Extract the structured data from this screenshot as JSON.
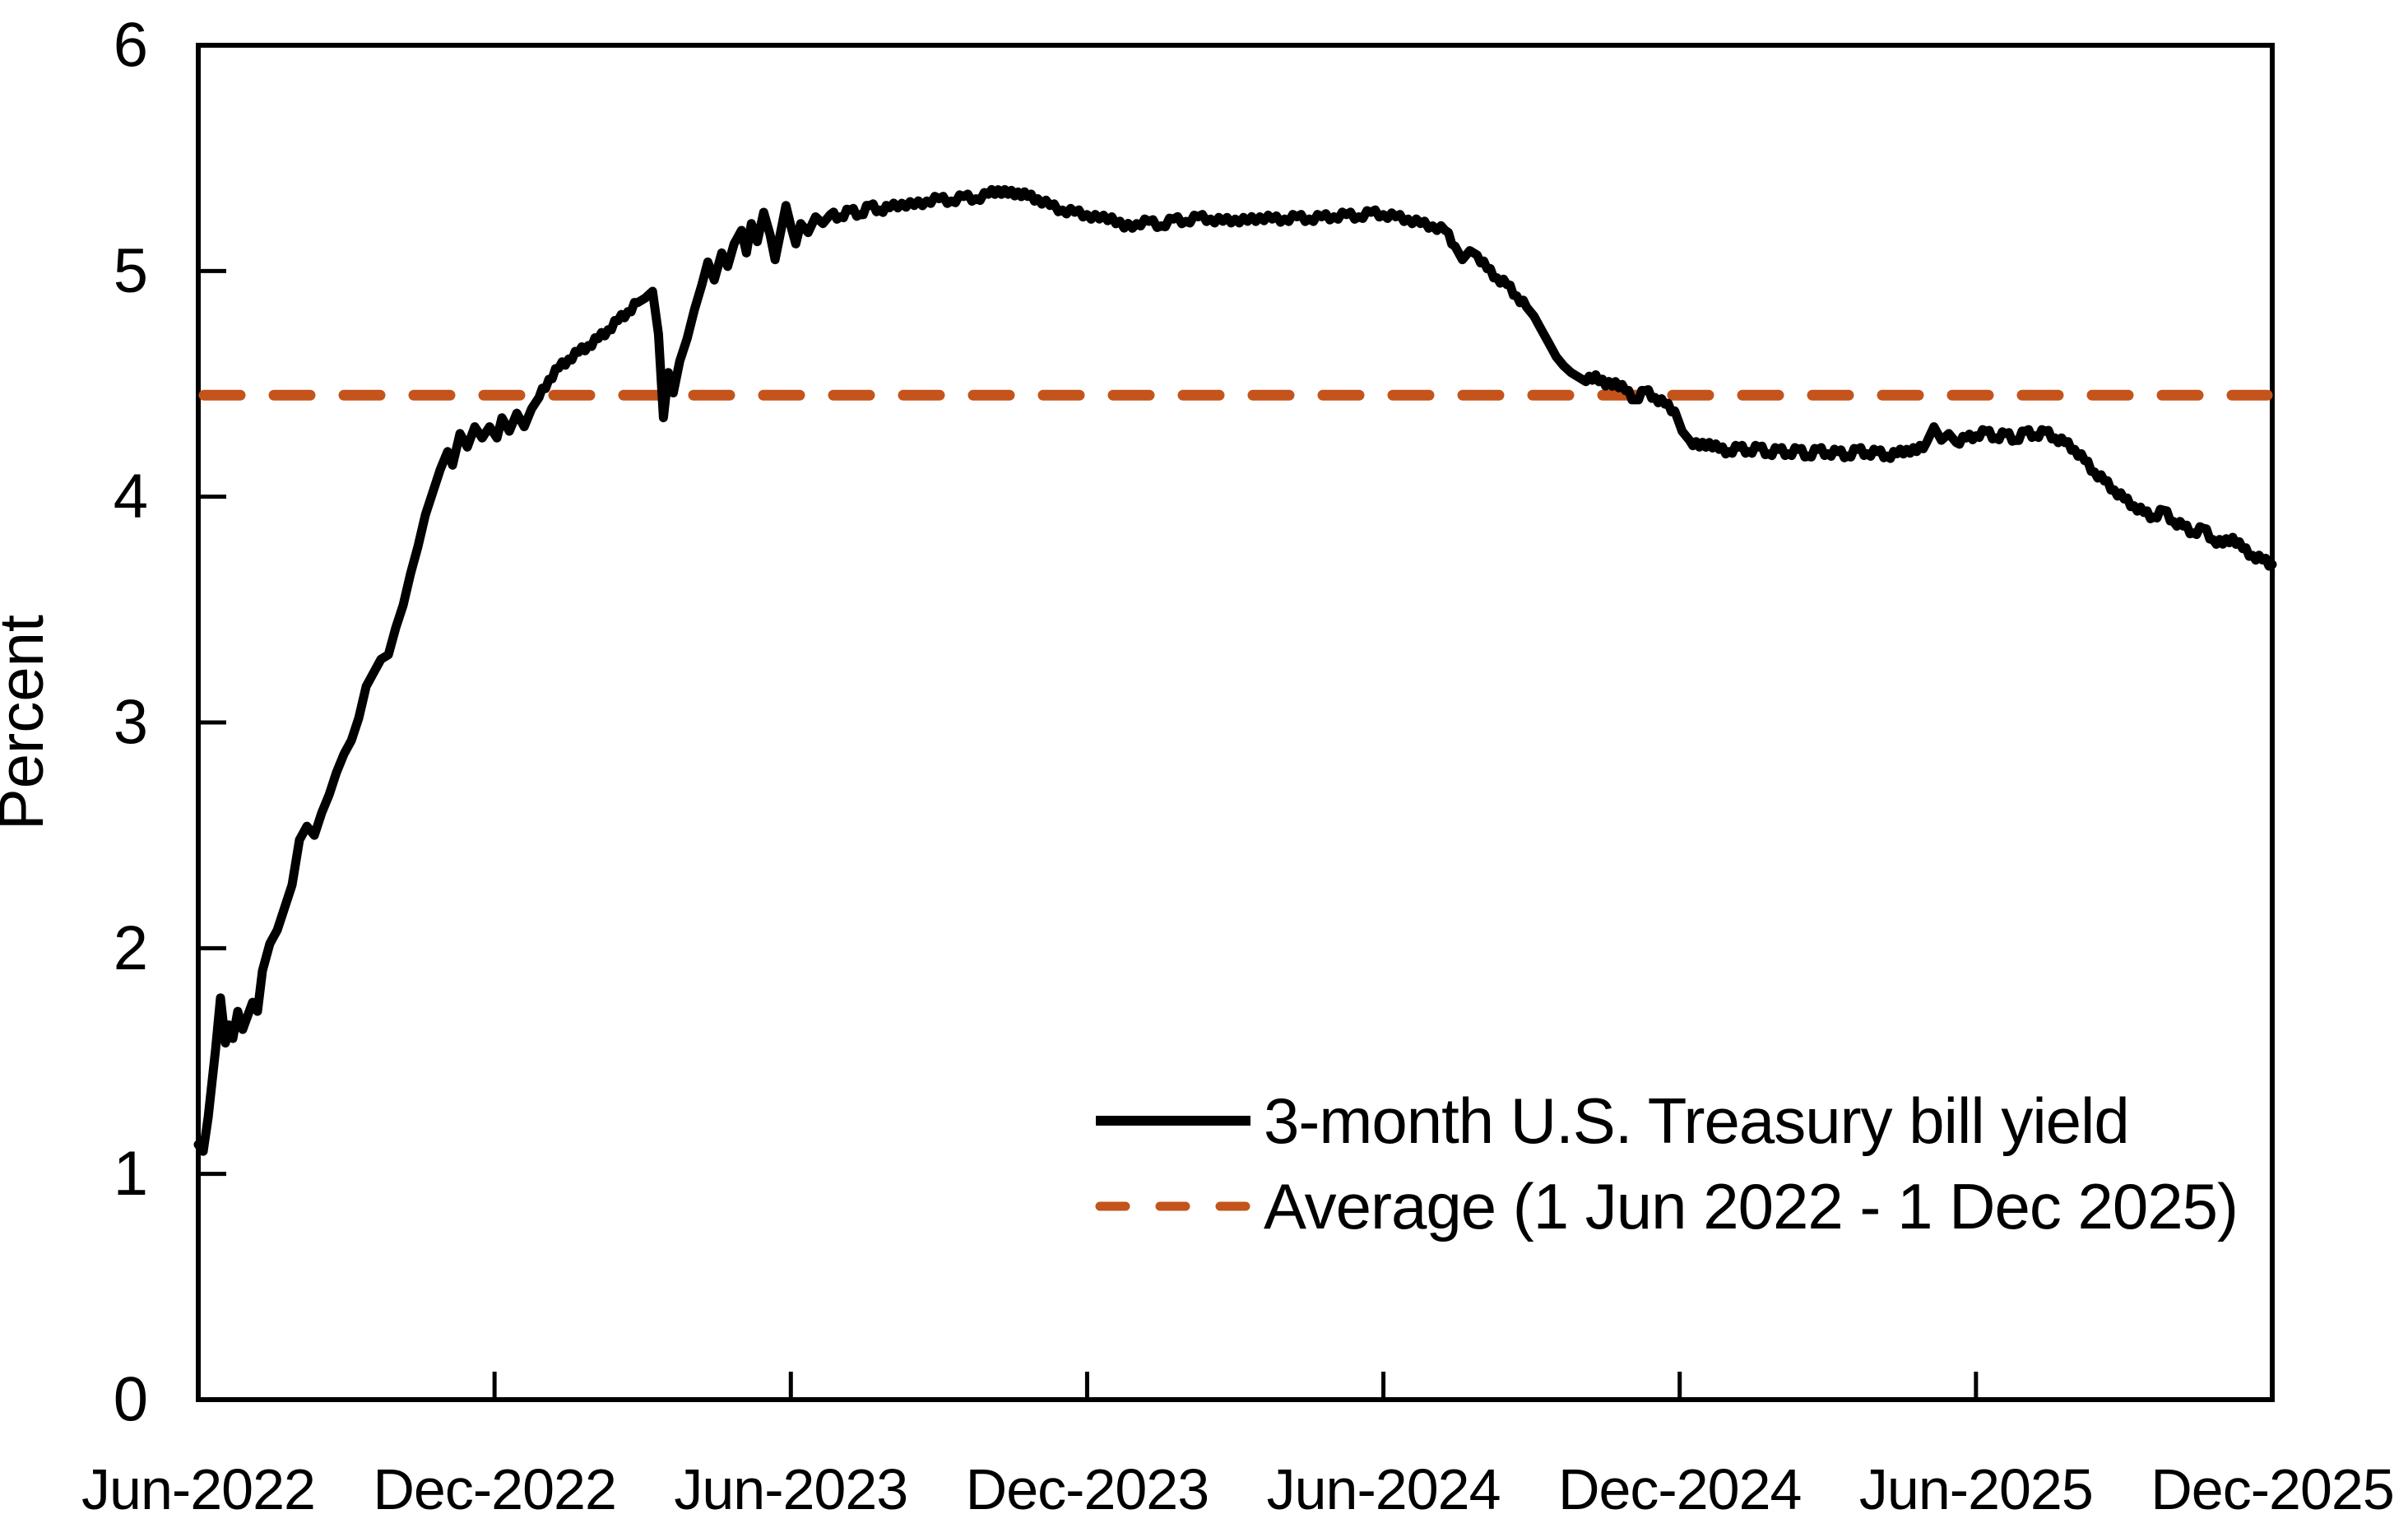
{
  "figure": {
    "background": "#FFFFFF",
    "plot_border_color": "#000000",
    "y_axis_title": "Percent"
  },
  "legend": {
    "position": "inside lower right",
    "items": [
      {
        "label": "3-month U.S. Treasury bill yield",
        "color": "#000000",
        "style": "solid"
      },
      {
        "label": "Average (1 Jun 2022 - 1 Dec 2025)",
        "color": "#C4541B",
        "style": "dashed"
      }
    ]
  },
  "chart_data": {
    "type": "line",
    "title": "",
    "xlabel": "",
    "ylabel": "Percent",
    "grid": false,
    "legend_position": "inside lower right",
    "x_tick_labels": [
      "Jun-2022",
      "Dec-2022",
      "Jun-2023",
      "Dec-2023",
      "Jun-2024",
      "Dec-2024",
      "Jun-2025",
      "Dec-2025"
    ],
    "x_tick_positions_months_since_start": [
      0,
      6,
      12,
      18,
      24,
      30,
      36,
      42
    ],
    "xlim_months": [
      0,
      42
    ],
    "y_ticks": [
      0,
      1,
      2,
      3,
      4,
      5,
      6
    ],
    "ylim": [
      0,
      6
    ],
    "series": [
      {
        "name": "3-month U.S. Treasury bill yield",
        "type": "line",
        "style": "solid",
        "color": "#000000",
        "points_format": "[months since 1 Jun 2022, yield percent]",
        "points": [
          [
            0,
            1.13
          ],
          [
            0.1,
            1.1
          ],
          [
            0.2,
            1.25
          ],
          [
            0.35,
            1.55
          ],
          [
            0.45,
            1.78
          ],
          [
            0.55,
            1.58
          ],
          [
            0.62,
            1.66
          ],
          [
            0.7,
            1.6
          ],
          [
            0.8,
            1.72
          ],
          [
            0.9,
            1.64
          ],
          [
            1.0,
            1.7
          ],
          [
            1.1,
            1.76
          ],
          [
            1.2,
            1.72
          ],
          [
            1.3,
            1.9
          ],
          [
            1.45,
            2.02
          ],
          [
            1.6,
            2.08
          ],
          [
            1.75,
            2.18
          ],
          [
            1.9,
            2.28
          ],
          [
            2.05,
            2.48
          ],
          [
            2.2,
            2.54
          ],
          [
            2.35,
            2.5
          ],
          [
            2.5,
            2.6
          ],
          [
            2.65,
            2.68
          ],
          [
            2.8,
            2.78
          ],
          [
            2.95,
            2.86
          ],
          [
            3.1,
            2.92
          ],
          [
            3.25,
            3.02
          ],
          [
            3.4,
            3.16
          ],
          [
            3.55,
            3.22
          ],
          [
            3.7,
            3.28
          ],
          [
            3.85,
            3.3
          ],
          [
            4.0,
            3.42
          ],
          [
            4.15,
            3.52
          ],
          [
            4.3,
            3.66
          ],
          [
            4.45,
            3.78
          ],
          [
            4.6,
            3.92
          ],
          [
            4.75,
            4.02
          ],
          [
            4.9,
            4.12
          ],
          [
            5.05,
            4.2
          ],
          [
            5.15,
            4.14
          ],
          [
            5.3,
            4.28
          ],
          [
            5.45,
            4.22
          ],
          [
            5.6,
            4.31
          ],
          [
            5.75,
            4.26
          ],
          [
            5.9,
            4.31
          ],
          [
            6.05,
            4.26
          ],
          [
            6.15,
            4.35
          ],
          [
            6.3,
            4.29
          ],
          [
            6.45,
            4.37
          ],
          [
            6.6,
            4.31
          ],
          [
            6.75,
            4.39
          ],
          [
            6.9,
            4.44
          ],
          [
            7.1,
            4.52
          ],
          [
            7.3,
            4.57
          ],
          [
            7.5,
            4.61
          ],
          [
            7.7,
            4.64
          ],
          [
            7.9,
            4.67
          ],
          [
            8.1,
            4.7
          ],
          [
            8.3,
            4.74
          ],
          [
            8.5,
            4.78
          ],
          [
            8.7,
            4.82
          ],
          [
            8.9,
            4.86
          ],
          [
            9.05,
            4.88
          ],
          [
            9.2,
            4.91
          ],
          [
            9.32,
            4.72
          ],
          [
            9.42,
            4.35
          ],
          [
            9.52,
            4.55
          ],
          [
            9.62,
            4.46
          ],
          [
            9.75,
            4.6
          ],
          [
            9.9,
            4.7
          ],
          [
            10.05,
            4.83
          ],
          [
            10.2,
            4.94
          ],
          [
            10.32,
            5.04
          ],
          [
            10.45,
            4.96
          ],
          [
            10.6,
            5.08
          ],
          [
            10.72,
            5.02
          ],
          [
            10.85,
            5.12
          ],
          [
            11.0,
            5.18
          ],
          [
            11.1,
            5.08
          ],
          [
            11.2,
            5.21
          ],
          [
            11.32,
            5.13
          ],
          [
            11.45,
            5.26
          ],
          [
            11.58,
            5.16
          ],
          [
            11.68,
            5.05
          ],
          [
            11.8,
            5.18
          ],
          [
            11.9,
            5.29
          ],
          [
            12.0,
            5.2
          ],
          [
            12.1,
            5.12
          ],
          [
            12.2,
            5.21
          ],
          [
            12.35,
            5.17
          ],
          [
            12.5,
            5.24
          ],
          [
            12.65,
            5.21
          ],
          [
            12.8,
            5.25
          ],
          [
            13.0,
            5.24
          ],
          [
            13.2,
            5.27
          ],
          [
            13.4,
            5.25
          ],
          [
            13.6,
            5.29
          ],
          [
            13.8,
            5.27
          ],
          [
            14.0,
            5.28
          ],
          [
            14.25,
            5.3
          ],
          [
            14.5,
            5.29
          ],
          [
            14.75,
            5.31
          ],
          [
            15.0,
            5.32
          ],
          [
            15.25,
            5.31
          ],
          [
            15.5,
            5.33
          ],
          [
            15.75,
            5.32
          ],
          [
            16.0,
            5.34
          ],
          [
            16.2,
            5.36
          ],
          [
            16.4,
            5.34
          ],
          [
            16.6,
            5.35
          ],
          [
            16.8,
            5.33
          ],
          [
            17.0,
            5.32
          ],
          [
            17.25,
            5.29
          ],
          [
            17.5,
            5.27
          ],
          [
            17.75,
            5.26
          ],
          [
            18.0,
            5.25
          ],
          [
            18.25,
            5.23
          ],
          [
            18.5,
            5.24
          ],
          [
            18.75,
            5.19
          ],
          [
            19.0,
            5.21
          ],
          [
            19.25,
            5.22
          ],
          [
            19.5,
            5.2
          ],
          [
            19.75,
            5.23
          ],
          [
            20.0,
            5.22
          ],
          [
            20.25,
            5.24
          ],
          [
            20.5,
            5.23
          ],
          [
            20.75,
            5.22
          ],
          [
            21.0,
            5.23
          ],
          [
            21.25,
            5.22
          ],
          [
            21.5,
            5.24
          ],
          [
            21.75,
            5.23
          ],
          [
            22.0,
            5.23
          ],
          [
            22.25,
            5.24
          ],
          [
            22.5,
            5.23
          ],
          [
            22.75,
            5.24
          ],
          [
            23.0,
            5.24
          ],
          [
            23.25,
            5.25
          ],
          [
            23.5,
            5.24
          ],
          [
            23.75,
            5.26
          ],
          [
            24.0,
            5.25
          ],
          [
            24.25,
            5.24
          ],
          [
            24.5,
            5.23
          ],
          [
            24.75,
            5.21
          ],
          [
            25.0,
            5.2
          ],
          [
            25.25,
            5.18
          ],
          [
            25.45,
            5.11
          ],
          [
            25.6,
            5.05
          ],
          [
            25.75,
            5.09
          ],
          [
            25.9,
            5.07
          ],
          [
            26.1,
            5.01
          ],
          [
            26.3,
            4.97
          ],
          [
            26.5,
            4.94
          ],
          [
            26.7,
            4.89
          ],
          [
            26.9,
            4.84
          ],
          [
            27.05,
            4.8
          ],
          [
            27.2,
            4.74
          ],
          [
            27.35,
            4.68
          ],
          [
            27.5,
            4.62
          ],
          [
            27.65,
            4.58
          ],
          [
            27.8,
            4.55
          ],
          [
            27.95,
            4.53
          ],
          [
            28.1,
            4.51
          ],
          [
            28.3,
            4.54
          ],
          [
            28.5,
            4.49
          ],
          [
            28.7,
            4.51
          ],
          [
            28.9,
            4.47
          ],
          [
            29.1,
            4.43
          ],
          [
            29.3,
            4.47
          ],
          [
            29.5,
            4.44
          ],
          [
            29.7,
            4.41
          ],
          [
            29.9,
            4.38
          ],
          [
            30.05,
            4.29
          ],
          [
            30.2,
            4.25
          ],
          [
            30.4,
            4.22
          ],
          [
            30.6,
            4.24
          ],
          [
            30.8,
            4.21
          ],
          [
            31.0,
            4.2
          ],
          [
            31.2,
            4.22
          ],
          [
            31.4,
            4.2
          ],
          [
            31.6,
            4.22
          ],
          [
            31.8,
            4.19
          ],
          [
            32.0,
            4.21
          ],
          [
            32.2,
            4.19
          ],
          [
            32.4,
            4.21
          ],
          [
            32.6,
            4.18
          ],
          [
            32.8,
            4.21
          ],
          [
            33.0,
            4.19
          ],
          [
            33.2,
            4.2
          ],
          [
            33.4,
            4.18
          ],
          [
            33.6,
            4.21
          ],
          [
            33.8,
            4.19
          ],
          [
            34.0,
            4.2
          ],
          [
            34.2,
            4.18
          ],
          [
            34.4,
            4.19
          ],
          [
            34.6,
            4.21
          ],
          [
            34.8,
            4.2
          ],
          [
            35.0,
            4.24
          ],
          [
            35.15,
            4.31
          ],
          [
            35.3,
            4.25
          ],
          [
            35.45,
            4.28
          ],
          [
            35.6,
            4.24
          ],
          [
            35.8,
            4.26
          ],
          [
            36.0,
            4.27
          ],
          [
            36.2,
            4.29
          ],
          [
            36.4,
            4.26
          ],
          [
            36.6,
            4.28
          ],
          [
            36.8,
            4.25
          ],
          [
            37.0,
            4.29
          ],
          [
            37.2,
            4.27
          ],
          [
            37.4,
            4.29
          ],
          [
            37.6,
            4.26
          ],
          [
            37.8,
            4.24
          ],
          [
            38.0,
            4.21
          ],
          [
            38.2,
            4.16
          ],
          [
            38.4,
            4.11
          ],
          [
            38.6,
            4.07
          ],
          [
            38.8,
            4.03
          ],
          [
            39.0,
            3.99
          ],
          [
            39.2,
            3.96
          ],
          [
            39.4,
            3.93
          ],
          [
            39.6,
            3.91
          ],
          [
            39.8,
            3.94
          ],
          [
            40.0,
            3.89
          ],
          [
            40.2,
            3.87
          ],
          [
            40.4,
            3.84
          ],
          [
            40.6,
            3.86
          ],
          [
            40.8,
            3.81
          ],
          [
            41.0,
            3.79
          ],
          [
            41.2,
            3.82
          ],
          [
            41.4,
            3.77
          ],
          [
            41.6,
            3.74
          ],
          [
            41.8,
            3.72
          ],
          [
            42.0,
            3.7
          ]
        ]
      },
      {
        "name": "Average (1 Jun 2022 - 1 Dec 2025)",
        "type": "horizontal-line",
        "style": "dashed",
        "color": "#C4541B",
        "value_percent": 4.45
      }
    ]
  }
}
